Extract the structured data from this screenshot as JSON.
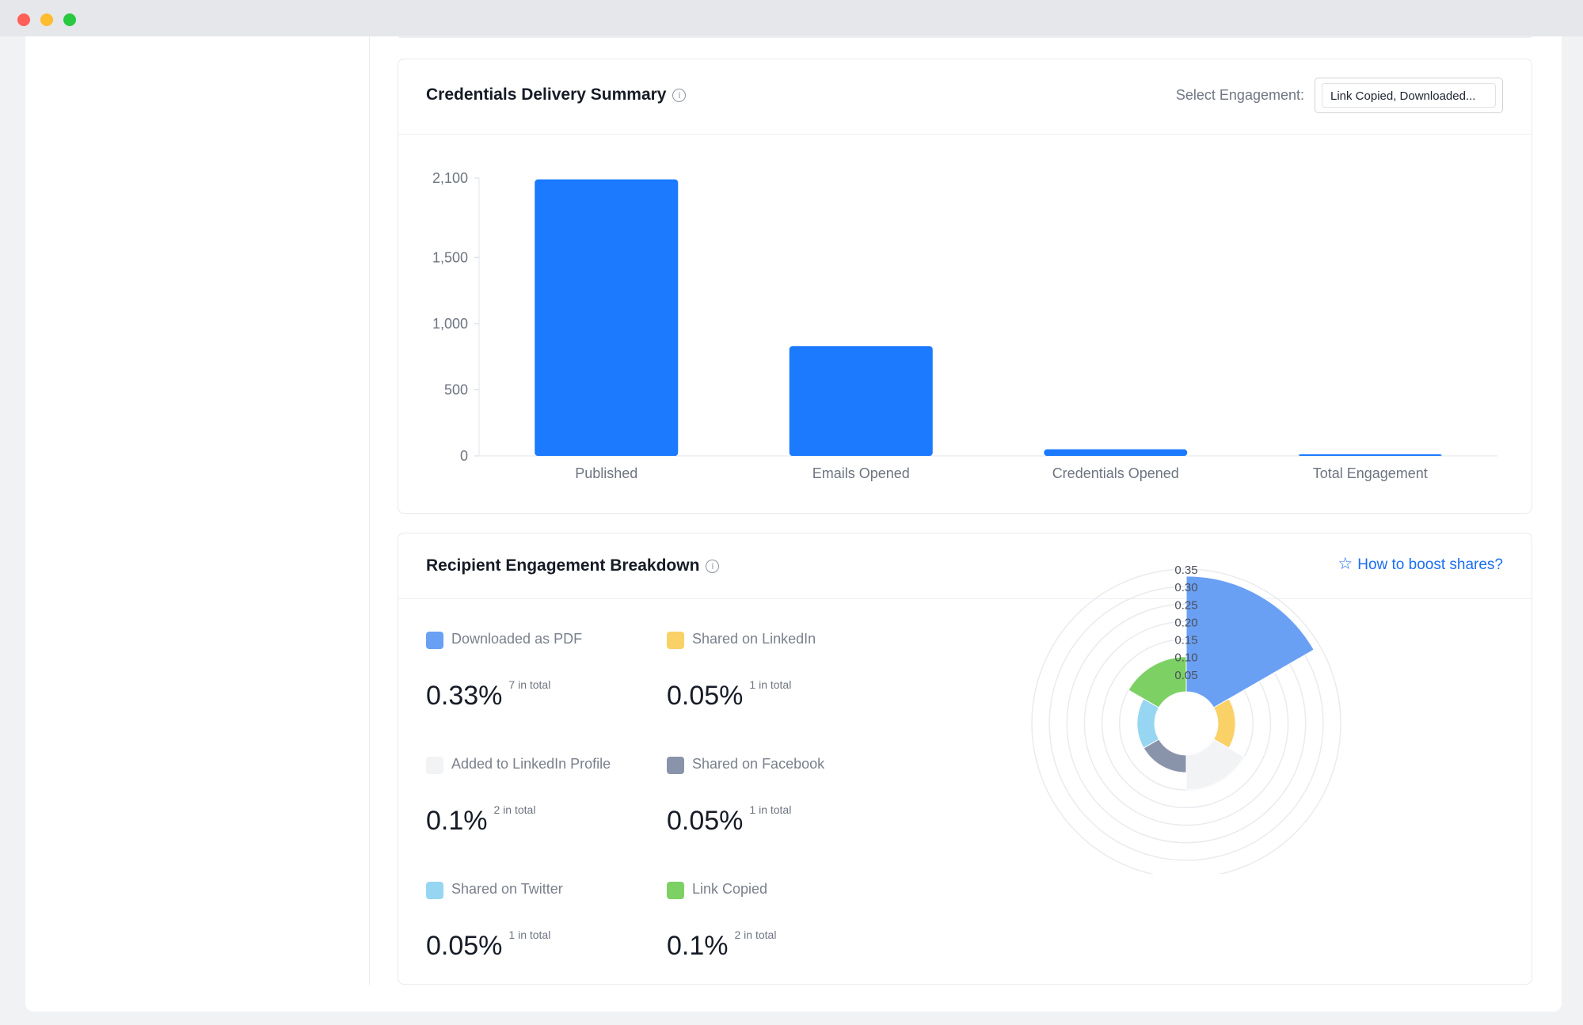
{
  "window": {
    "controls": [
      "close",
      "minimize",
      "zoom"
    ]
  },
  "delivery": {
    "title": "Credentials Delivery Summary",
    "info_icon": "info-icon",
    "select_label": "Select Engagement:",
    "select_value": "Link Copied, Downloaded..."
  },
  "engagement": {
    "title": "Recipient Engagement Breakdown",
    "info_icon": "info-icon",
    "boost_icon": "star-icon",
    "boost_label": "How to boost shares?",
    "items": [
      {
        "label": "Downloaded as PDF",
        "pct": "0.33%",
        "total": "7 in total",
        "color": "#6aa0f4"
      },
      {
        "label": "Shared on LinkedIn",
        "pct": "0.05%",
        "total": "1 in total",
        "color": "#f9d167"
      },
      {
        "label": "Added to LinkedIn Profile",
        "pct": "0.1%",
        "total": "2 in total",
        "color": "#f2f3f5"
      },
      {
        "label": "Shared on Facebook",
        "pct": "0.05%",
        "total": "1 in total",
        "color": "#8994aa"
      },
      {
        "label": "Shared on Twitter",
        "pct": "0.05%",
        "total": "1 in total",
        "color": "#97d6f2"
      },
      {
        "label": "Link Copied",
        "pct": "0.1%",
        "total": "2 in total",
        "color": "#7dd063"
      }
    ]
  },
  "chart_data": [
    {
      "type": "bar",
      "title": "Credentials Delivery Summary",
      "categories": [
        "Published",
        "Emails Opened",
        "Credentials Opened",
        "Total Engagement"
      ],
      "values": [
        2090,
        830,
        50,
        8
      ],
      "yticks": [
        0,
        500,
        1000,
        1500,
        2100
      ],
      "ytick_labels": [
        "0",
        "500",
        "1,000",
        "1,500",
        "2,100"
      ],
      "ylim": [
        0,
        2100
      ],
      "color": "#1b7aff",
      "grid": false
    },
    {
      "type": "polar-bar",
      "title": "Recipient Engagement Breakdown",
      "categories": [
        "Downloaded as PDF",
        "Shared on LinkedIn",
        "Added to LinkedIn Profile",
        "Shared on Facebook",
        "Shared on Twitter",
        "Link Copied"
      ],
      "values": [
        0.33,
        0.05,
        0.1,
        0.05,
        0.05,
        0.1
      ],
      "colors": [
        "#6aa0f4",
        "#f9d167",
        "#f2f3f5",
        "#8994aa",
        "#97d6f2",
        "#7dd063"
      ],
      "rticks": [
        0.05,
        0.1,
        0.15,
        0.2,
        0.25,
        0.3,
        0.35
      ],
      "rtick_labels": [
        "0.05",
        "0.10",
        "0.15",
        "0.20",
        "0.25",
        "0.30",
        "0.35"
      ],
      "rlim": [
        0,
        0.35
      ]
    }
  ]
}
